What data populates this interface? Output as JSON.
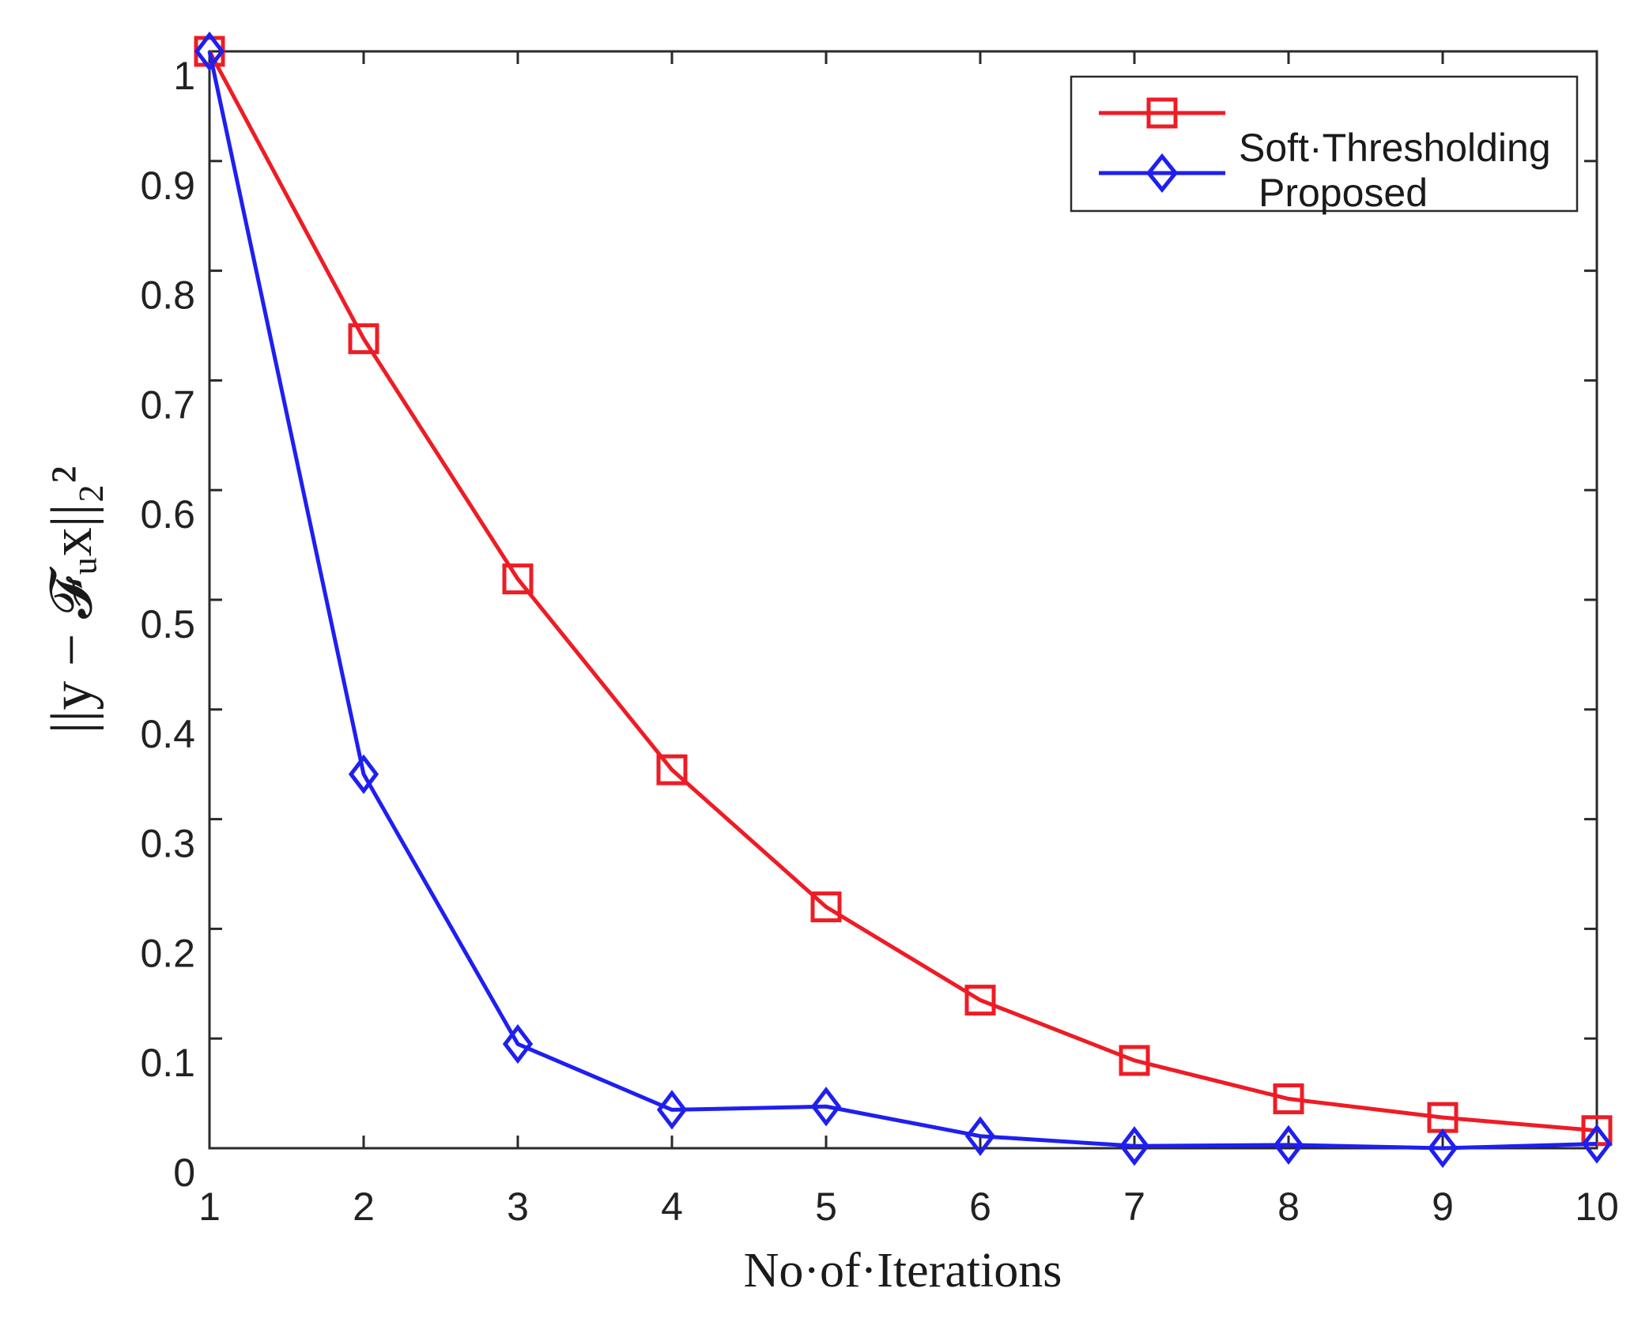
{
  "chart_data": {
    "type": "line",
    "title": "",
    "xlabel": "No·of·Iterations",
    "ylabel": "||y − 𝓕ᵤx||₂²",
    "x": [
      1,
      2,
      3,
      4,
      5,
      6,
      7,
      8,
      9,
      10
    ],
    "xlim": [
      1,
      10
    ],
    "ylim": [
      0,
      1
    ],
    "xticks": [
      1,
      2,
      3,
      4,
      5,
      6,
      7,
      8,
      9,
      10
    ],
    "xtick_labels": [
      "1",
      "2",
      "3",
      "4",
      "5",
      "6",
      "7",
      "8",
      "9",
      "10"
    ],
    "yticks": [
      0,
      0.1,
      0.2,
      0.3,
      0.4,
      0.5,
      0.6,
      0.7,
      0.8,
      0.9,
      1
    ],
    "ytick_labels": [
      "0",
      "0.1",
      "0.2",
      "0.3",
      "0.4",
      "0.5",
      "0.6",
      "0.7",
      "0.8",
      "0.9",
      "1"
    ],
    "grid": false,
    "legend_position": "top-right",
    "series": [
      {
        "name": "Soft·Thresholding",
        "color": "#ee1c25",
        "marker": "square",
        "values": [
          1.0,
          0.738,
          0.519,
          0.345,
          0.22,
          0.135,
          0.08,
          0.045,
          0.028,
          0.016
        ]
      },
      {
        "name": "Proposed",
        "color": "#1f1ff0",
        "marker": "diamond",
        "values": [
          1.0,
          0.341,
          0.095,
          0.035,
          0.038,
          0.011,
          0.002,
          0.003,
          0.0,
          0.004
        ]
      }
    ]
  }
}
